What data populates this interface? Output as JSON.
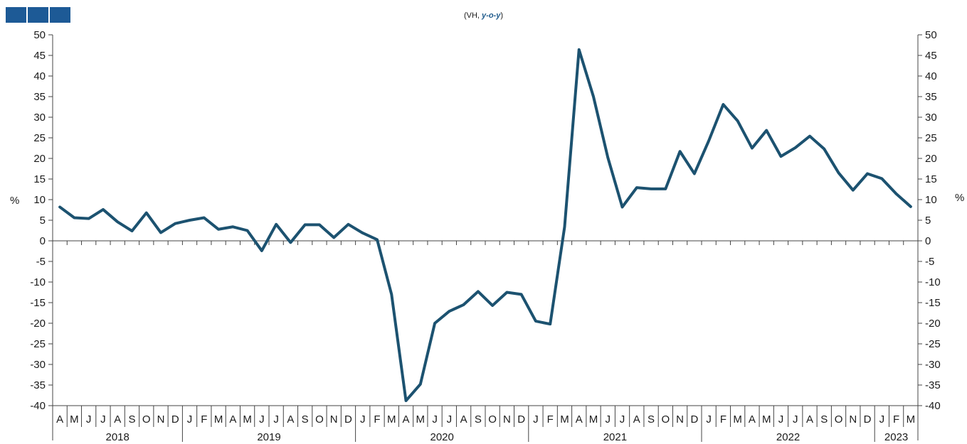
{
  "header": {
    "subtitle_open": "(VH, ",
    "subtitle_em": "y-o-y",
    "subtitle_close": ")",
    "logo_color": "#1d5a96"
  },
  "chart_data": {
    "type": "line",
    "title": "",
    "subtitle": "(VH, y-o-y)",
    "ylabel_left": "%",
    "ylabel_right": "%",
    "ylim": [
      -40,
      50
    ],
    "ytick_step": 5,
    "grid": false,
    "line_color": "#1c5270",
    "x": [
      "2018-04",
      "2018-05",
      "2018-06",
      "2018-07",
      "2018-08",
      "2018-09",
      "2018-10",
      "2018-11",
      "2018-12",
      "2019-01",
      "2019-02",
      "2019-03",
      "2019-04",
      "2019-05",
      "2019-06",
      "2019-07",
      "2019-08",
      "2019-09",
      "2019-10",
      "2019-11",
      "2019-12",
      "2020-01",
      "2020-02",
      "2020-03",
      "2020-04",
      "2020-05",
      "2020-06",
      "2020-07",
      "2020-08",
      "2020-09",
      "2020-10",
      "2020-11",
      "2020-12",
      "2021-01",
      "2021-02",
      "2021-03",
      "2021-04",
      "2021-05",
      "2021-06",
      "2021-07",
      "2021-08",
      "2021-09",
      "2021-10",
      "2021-11",
      "2021-12",
      "2022-01",
      "2022-02",
      "2022-03",
      "2022-04",
      "2022-05",
      "2022-06",
      "2022-07",
      "2022-08",
      "2022-09",
      "2022-10",
      "2022-11",
      "2022-12",
      "2023-01",
      "2023-02",
      "2023-03"
    ],
    "month_labels": [
      "A",
      "M",
      "J",
      "J",
      "A",
      "S",
      "O",
      "N",
      "D",
      "J",
      "F",
      "M",
      "A",
      "M",
      "J",
      "J",
      "A",
      "S",
      "O",
      "N",
      "D",
      "J",
      "F",
      "M",
      "A",
      "M",
      "J",
      "J",
      "A",
      "S",
      "O",
      "N",
      "D",
      "J",
      "F",
      "M",
      "A",
      "M",
      "J",
      "J",
      "A",
      "S",
      "O",
      "N",
      "D",
      "J",
      "F",
      "M",
      "A",
      "M",
      "J",
      "J",
      "A",
      "S",
      "O",
      "N",
      "D",
      "J",
      "F",
      "M"
    ],
    "years": [
      {
        "label": "2018",
        "start": 0,
        "end": 8
      },
      {
        "label": "2019",
        "start": 9,
        "end": 20
      },
      {
        "label": "2020",
        "start": 21,
        "end": 32
      },
      {
        "label": "2021",
        "start": 33,
        "end": 44
      },
      {
        "label": "2022",
        "start": 45,
        "end": 56
      },
      {
        "label": "2023",
        "start": 57,
        "end": 59
      }
    ],
    "series": [
      {
        "values": [
          8.2,
          5.6,
          5.4,
          7.6,
          4.6,
          2.4,
          6.8,
          2.0,
          4.2,
          5.0,
          5.6,
          2.8,
          3.4,
          2.5,
          -2.4,
          4.0,
          -0.4,
          3.9,
          3.9,
          0.8,
          4.0,
          1.9,
          0.3,
          -13.0,
          -38.8,
          -34.8,
          -20.0,
          -17.1,
          -15.5,
          -12.3,
          -15.7,
          -12.5,
          -13.0,
          -19.5,
          -20.2,
          3.4,
          46.4,
          35.0,
          20.2,
          8.2,
          12.9,
          12.6,
          12.6,
          21.7,
          16.3,
          24.3,
          33.1,
          29.1,
          22.5,
          26.8,
          20.5,
          22.6,
          25.4,
          22.3,
          16.5,
          12.3,
          16.3,
          15.1,
          11.4,
          8.3
        ]
      }
    ]
  }
}
